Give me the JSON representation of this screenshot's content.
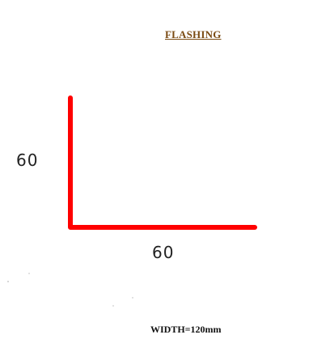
{
  "title": "FLASHING",
  "profile": {
    "vertical_leg": "60",
    "horizontal_leg": "60",
    "color": "#ff0000"
  },
  "width_note": "WIDTH=120mm"
}
